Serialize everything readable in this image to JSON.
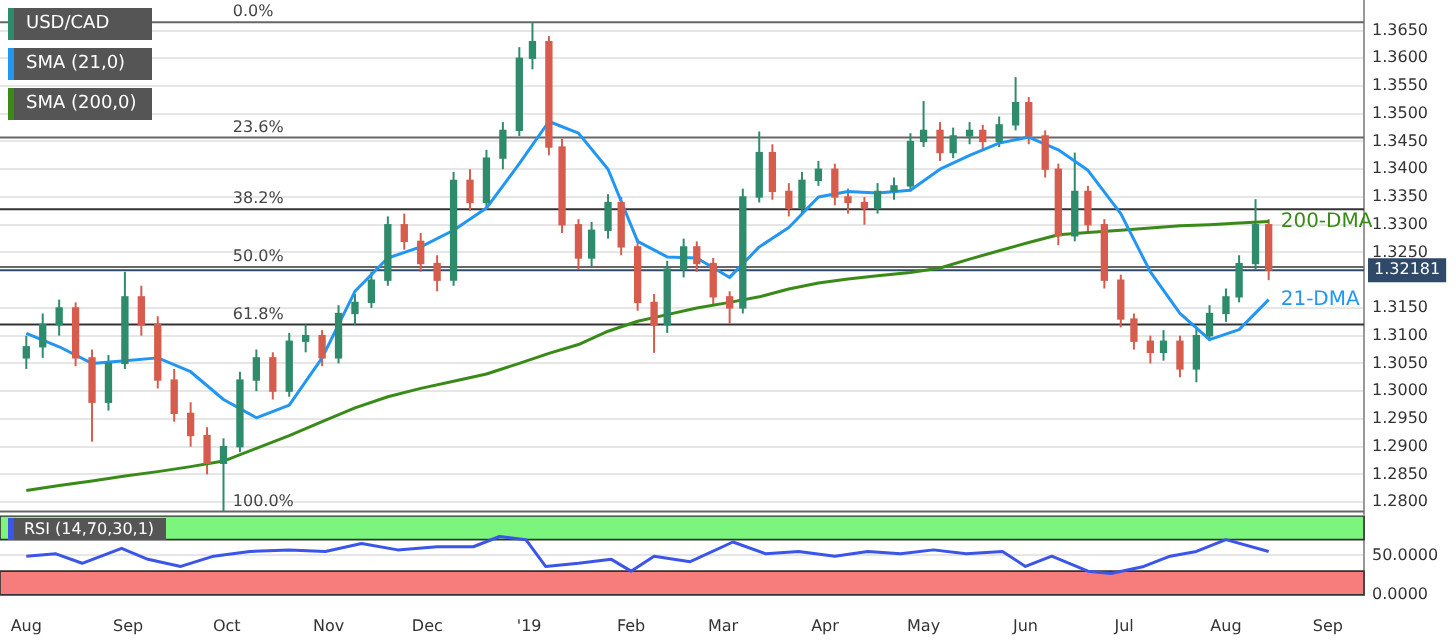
{
  "chart_data": [
    {
      "type": "candlestick",
      "legend": "top left",
      "grid": "y",
      "tick_labels": "y",
      "marker": "none",
      "xlim": [
        "2018-07-24",
        "2019-09-12"
      ],
      "ylim": [
        1.2775,
        1.3705
      ],
      "yticks": [
        {
          "value": 1.28,
          "label": "1.2800"
        },
        {
          "value": 1.285,
          "label": "1.2850"
        },
        {
          "value": 1.29,
          "label": "1.2900"
        },
        {
          "value": 1.295,
          "label": "1.2950"
        },
        {
          "value": 1.3,
          "label": "1.3000"
        },
        {
          "value": 1.305,
          "label": "1.3050"
        },
        {
          "value": 1.31,
          "label": "1.3100"
        },
        {
          "value": 1.315,
          "label": "1.3150"
        },
        {
          "value": 1.325,
          "label": "1.3250"
        },
        {
          "value": 1.33,
          "label": "1.3300"
        },
        {
          "value": 1.335,
          "label": "1.3350"
        },
        {
          "value": 1.34,
          "label": "1.3400"
        },
        {
          "value": 1.345,
          "label": "1.3450"
        },
        {
          "value": 1.35,
          "label": "1.3500"
        },
        {
          "value": 1.355,
          "label": "1.3550"
        },
        {
          "value": 1.36,
          "label": "1.3600"
        },
        {
          "value": 1.365,
          "label": "1.3650"
        }
      ],
      "series": [
        {
          "name": "USD/CAD",
          "color": "#2e8b6b",
          "x": [
            "2018-08-01",
            "2018-08-06",
            "2018-08-11",
            "2018-08-16",
            "2018-08-21",
            "2018-08-26",
            "2018-08-31",
            "2018-09-05",
            "2018-09-10",
            "2018-09-15",
            "2018-09-20",
            "2018-09-25",
            "2018-09-30",
            "2018-10-05",
            "2018-10-10",
            "2018-10-15",
            "2018-10-20",
            "2018-10-25",
            "2018-10-30",
            "2018-11-04",
            "2018-11-09",
            "2018-11-14",
            "2018-11-19",
            "2018-11-24",
            "2018-11-29",
            "2018-12-04",
            "2018-12-09",
            "2018-12-14",
            "2018-12-19",
            "2018-12-24",
            "2018-12-29",
            "2019-01-02",
            "2019-01-07",
            "2019-01-11",
            "2019-01-16",
            "2019-01-20",
            "2019-01-25",
            "2019-01-29",
            "2019-02-03",
            "2019-02-08",
            "2019-02-12",
            "2019-02-17",
            "2019-02-21",
            "2019-02-26",
            "2019-03-03",
            "2019-03-07",
            "2019-03-12",
            "2019-03-16",
            "2019-03-21",
            "2019-03-25",
            "2019-03-30",
            "2019-04-04",
            "2019-04-08",
            "2019-04-13",
            "2019-04-17",
            "2019-04-22",
            "2019-04-27",
            "2019-05-01",
            "2019-05-06",
            "2019-05-10",
            "2019-05-15",
            "2019-05-19",
            "2019-05-24",
            "2019-05-29",
            "2019-06-02",
            "2019-06-07",
            "2019-06-11",
            "2019-06-16",
            "2019-06-20",
            "2019-06-25",
            "2019-06-30",
            "2019-07-04",
            "2019-07-09",
            "2019-07-13",
            "2019-07-18",
            "2019-07-23",
            "2019-07-27",
            "2019-08-01",
            "2019-08-05",
            "2019-08-10",
            "2019-08-14"
          ],
          "ohlc": [
            [
              1.306,
              1.31,
              1.304,
              1.308
            ],
            [
              1.308,
              1.314,
              1.306,
              1.312
            ],
            [
              1.312,
              1.3165,
              1.31,
              1.315
            ],
            [
              1.315,
              1.316,
              1.3045,
              1.306
            ],
            [
              1.306,
              1.3075,
              1.2909,
              1.298
            ],
            [
              1.298,
              1.3065,
              1.2965,
              1.305
            ],
            [
              1.305,
              1.3215,
              1.304,
              1.317
            ],
            [
              1.317,
              1.319,
              1.31,
              1.312
            ],
            [
              1.312,
              1.3135,
              1.3005,
              1.302
            ],
            [
              1.302,
              1.304,
              1.2945,
              1.296
            ],
            [
              1.296,
              1.298,
              1.29,
              1.292
            ],
            [
              1.292,
              1.2935,
              1.285,
              1.287
            ],
            [
              1.287,
              1.2915,
              1.2783,
              1.29
            ],
            [
              1.29,
              1.3035,
              1.289,
              1.302
            ],
            [
              1.302,
              1.3075,
              1.3,
              1.306
            ],
            [
              1.306,
              1.307,
              1.2985,
              1.3
            ],
            [
              1.3,
              1.3105,
              1.299,
              1.309
            ],
            [
              1.309,
              1.312,
              1.307,
              1.31
            ],
            [
              1.31,
              1.311,
              1.3045,
              1.306
            ],
            [
              1.306,
              1.3155,
              1.305,
              1.314
            ],
            [
              1.314,
              1.3175,
              1.312,
              1.316
            ],
            [
              1.316,
              1.3215,
              1.315,
              1.32
            ],
            [
              1.32,
              1.3315,
              1.319,
              1.33
            ],
            [
              1.33,
              1.332,
              1.3255,
              1.327
            ],
            [
              1.327,
              1.3285,
              1.3215,
              1.323
            ],
            [
              1.323,
              1.3245,
              1.318,
              1.32
            ],
            [
              1.32,
              1.3395,
              1.319,
              1.338
            ],
            [
              1.338,
              1.34,
              1.3325,
              1.334
            ],
            [
              1.334,
              1.3435,
              1.333,
              1.342
            ],
            [
              1.342,
              1.3485,
              1.34,
              1.347
            ],
            [
              1.347,
              1.362,
              1.346,
              1.36
            ],
            [
              1.36,
              1.3665,
              1.358,
              1.363
            ],
            [
              1.363,
              1.364,
              1.3425,
              1.344
            ],
            [
              1.344,
              1.3455,
              1.3285,
              1.33
            ],
            [
              1.33,
              1.331,
              1.322,
              1.324
            ],
            [
              1.324,
              1.3305,
              1.3225,
              1.329
            ],
            [
              1.329,
              1.3355,
              1.3275,
              1.334
            ],
            [
              1.334,
              1.335,
              1.3245,
              1.326
            ],
            [
              1.326,
              1.3275,
              1.3145,
              1.316
            ],
            [
              1.316,
              1.3175,
              1.3069,
              1.312
            ],
            [
              1.312,
              1.3235,
              1.3105,
              1.322
            ],
            [
              1.322,
              1.3275,
              1.3205,
              1.326
            ],
            [
              1.326,
              1.327,
              1.3215,
              1.323
            ],
            [
              1.323,
              1.324,
              1.3155,
              1.317
            ],
            [
              1.317,
              1.318,
              1.3122,
              1.315
            ],
            [
              1.315,
              1.3365,
              1.314,
              1.335
            ],
            [
              1.335,
              1.3468,
              1.334,
              1.343
            ],
            [
              1.343,
              1.3445,
              1.3345,
              1.336
            ],
            [
              1.336,
              1.3375,
              1.3315,
              1.333
            ],
            [
              1.333,
              1.3395,
              1.332,
              1.338
            ],
            [
              1.338,
              1.3415,
              1.337,
              1.34
            ],
            [
              1.34,
              1.341,
              1.3335,
              1.335
            ],
            [
              1.335,
              1.3365,
              1.332,
              1.334
            ],
            [
              1.334,
              1.335,
              1.33,
              1.333
            ],
            [
              1.333,
              1.3375,
              1.332,
              1.336
            ],
            [
              1.336,
              1.3385,
              1.3345,
              1.337
            ],
            [
              1.337,
              1.3465,
              1.336,
              1.345
            ],
            [
              1.345,
              1.3523,
              1.344,
              1.347
            ],
            [
              1.347,
              1.3485,
              1.3415,
              1.343
            ],
            [
              1.343,
              1.3475,
              1.342,
              1.346
            ],
            [
              1.346,
              1.3485,
              1.3445,
              1.347
            ],
            [
              1.347,
              1.348,
              1.3435,
              1.345
            ],
            [
              1.345,
              1.3495,
              1.344,
              1.348
            ],
            [
              1.348,
              1.3566,
              1.347,
              1.352
            ],
            [
              1.352,
              1.353,
              1.3445,
              1.346
            ],
            [
              1.346,
              1.347,
              1.3385,
              1.34
            ],
            [
              1.34,
              1.341,
              1.3263,
              1.328
            ],
            [
              1.328,
              1.343,
              1.327,
              1.336
            ],
            [
              1.336,
              1.337,
              1.3285,
              1.33
            ],
            [
              1.33,
              1.331,
              1.3185,
              1.32
            ],
            [
              1.32,
              1.321,
              1.3115,
              1.313
            ],
            [
              1.313,
              1.314,
              1.3075,
              1.309
            ],
            [
              1.309,
              1.31,
              1.305,
              1.307
            ],
            [
              1.307,
              1.311,
              1.3055,
              1.309
            ],
            [
              1.309,
              1.31,
              1.3025,
              1.304
            ],
            [
              1.304,
              1.3115,
              1.3016,
              1.31
            ],
            [
              1.31,
              1.3155,
              1.309,
              1.314
            ],
            [
              1.314,
              1.3185,
              1.3125,
              1.317
            ],
            [
              1.317,
              1.3245,
              1.316,
              1.323
            ],
            [
              1.323,
              1.3346,
              1.322,
              1.33
            ],
            [
              1.33,
              1.331,
              1.32,
              1.32181
            ]
          ],
          "colors": [
            "#2e8b6b",
            "#2e8b6b",
            "#2e8b6b",
            "#d65c4e",
            "#d65c4e",
            "#2e8b6b",
            "#2e8b6b",
            "#d65c4e",
            "#d65c4e",
            "#d65c4e",
            "#d65c4e",
            "#d65c4e",
            "#2e8b6b",
            "#2e8b6b",
            "#2e8b6b",
            "#d65c4e",
            "#2e8b6b",
            "#2e8b6b",
            "#d65c4e",
            "#2e8b6b",
            "#2e8b6b",
            "#2e8b6b",
            "#2e8b6b",
            "#d65c4e",
            "#d65c4e",
            "#d65c4e",
            "#2e8b6b",
            "#d65c4e",
            "#2e8b6b",
            "#2e8b6b",
            "#2e8b6b",
            "#2e8b6b",
            "#d65c4e",
            "#d65c4e",
            "#d65c4e",
            "#2e8b6b",
            "#2e8b6b",
            "#d65c4e",
            "#d65c4e",
            "#d65c4e",
            "#2e8b6b",
            "#2e8b6b",
            "#d65c4e",
            "#d65c4e",
            "#d65c4e",
            "#2e8b6b",
            "#2e8b6b",
            "#d65c4e",
            "#d65c4e",
            "#2e8b6b",
            "#2e8b6b",
            "#d65c4e",
            "#d65c4e",
            "#d65c4e",
            "#2e8b6b",
            "#2e8b6b",
            "#2e8b6b",
            "#2e8b6b",
            "#d65c4e",
            "#2e8b6b",
            "#2e8b6b",
            "#d65c4e",
            "#2e8b6b",
            "#2e8b6b",
            "#d65c4e",
            "#d65c4e",
            "#d65c4e",
            "#2e8b6b",
            "#d65c4e",
            "#d65c4e",
            "#d65c4e",
            "#d65c4e",
            "#d65c4e",
            "#2e8b6b",
            "#d65c4e",
            "#2e8b6b",
            "#2e8b6b",
            "#2e8b6b",
            "#2e8b6b",
            "#2e8b6b",
            "#d65c4e"
          ]
        },
        {
          "name": "SMA (21,0)",
          "type": "line",
          "color": "#2196f3",
          "x": [
            "2018-08-01",
            "2018-08-11",
            "2018-08-21",
            "2018-08-31",
            "2018-09-10",
            "2018-09-20",
            "2018-09-30",
            "2018-10-10",
            "2018-10-20",
            "2018-10-30",
            "2018-11-09",
            "2018-11-19",
            "2018-11-29",
            "2018-12-09",
            "2018-12-19",
            "2018-12-29",
            "2019-01-07",
            "2019-01-16",
            "2019-01-25",
            "2019-02-03",
            "2019-02-12",
            "2019-02-21",
            "2019-03-03",
            "2019-03-12",
            "2019-03-21",
            "2019-03-30",
            "2019-04-08",
            "2019-04-17",
            "2019-04-27",
            "2019-05-06",
            "2019-05-15",
            "2019-05-24",
            "2019-06-02",
            "2019-06-11",
            "2019-06-20",
            "2019-06-30",
            "2019-07-09",
            "2019-07-18",
            "2019-07-27",
            "2019-08-05",
            "2019-08-14"
          ],
          "values": [
            1.3104,
            1.308,
            1.305,
            1.3055,
            1.306,
            1.3035,
            1.2985,
            1.2952,
            1.2975,
            1.306,
            1.318,
            1.324,
            1.326,
            1.329,
            1.333,
            1.341,
            1.3486,
            1.3465,
            1.34,
            1.327,
            1.3242,
            1.324,
            1.3205,
            1.326,
            1.3295,
            1.335,
            1.336,
            1.3357,
            1.3362,
            1.34,
            1.3425,
            1.3447,
            1.3458,
            1.3435,
            1.3398,
            1.332,
            1.3215,
            1.314,
            1.3093,
            1.3111,
            1.3165
          ]
        },
        {
          "name": "SMA (200,0)",
          "type": "line",
          "color": "#3a8a1a",
          "x": [
            "2018-08-01",
            "2018-08-11",
            "2018-08-21",
            "2018-08-31",
            "2018-09-10",
            "2018-09-20",
            "2018-09-30",
            "2018-10-10",
            "2018-10-20",
            "2018-10-30",
            "2018-11-09",
            "2018-11-19",
            "2018-11-29",
            "2018-12-09",
            "2018-12-19",
            "2018-12-29",
            "2019-01-07",
            "2019-01-16",
            "2019-01-25",
            "2019-02-03",
            "2019-02-12",
            "2019-02-21",
            "2019-03-03",
            "2019-03-12",
            "2019-03-21",
            "2019-03-30",
            "2019-04-08",
            "2019-04-17",
            "2019-04-27",
            "2019-05-06",
            "2019-05-15",
            "2019-05-24",
            "2019-06-02",
            "2019-06-11",
            "2019-06-20",
            "2019-06-30",
            "2019-07-09",
            "2019-07-18",
            "2019-07-27",
            "2019-08-05",
            "2019-08-14"
          ],
          "values": [
            1.2821,
            1.283,
            1.2838,
            1.2847,
            1.2855,
            1.2864,
            1.2874,
            1.2897,
            1.292,
            1.2945,
            1.297,
            1.299,
            1.3005,
            1.3018,
            1.3031,
            1.305,
            1.3068,
            1.3084,
            1.3108,
            1.3126,
            1.3138,
            1.315,
            1.316,
            1.317,
            1.3184,
            1.3195,
            1.3202,
            1.3208,
            1.3214,
            1.3222,
            1.3238,
            1.3253,
            1.3268,
            1.3282,
            1.3286,
            1.329,
            1.3294,
            1.3298,
            1.33,
            1.3303,
            1.3306
          ]
        }
      ],
      "ref_lines": [
        {
          "axis": "y",
          "value": 1.32181,
          "label": "1.32181",
          "color": "#2f4a68"
        },
        {
          "axis": "y",
          "value": 1.3665,
          "color": "#666666"
        },
        {
          "axis": "y",
          "value": 1.3457,
          "color": "#666666"
        },
        {
          "axis": "y",
          "value": 1.3328,
          "color": "#333333"
        },
        {
          "axis": "y",
          "value": 1.3224,
          "color": "#666666"
        },
        {
          "axis": "y",
          "value": 1.312,
          "color": "#333333"
        },
        {
          "axis": "y",
          "value": 1.2783,
          "color": "#666666"
        }
      ],
      "annotations": [
        {
          "text": "0.0%",
          "x": "2018-10-01",
          "y": 1.3665
        },
        {
          "text": "23.6%",
          "x": "2018-10-01",
          "y": 1.3457
        },
        {
          "text": "38.2%",
          "x": "2018-10-01",
          "y": 1.3328
        },
        {
          "text": "50.0%",
          "x": "2018-10-01",
          "y": 1.3224
        },
        {
          "text": "61.8%",
          "x": "2018-10-01",
          "y": 1.312
        },
        {
          "text": "100.0%",
          "x": "2018-10-01",
          "y": 1.2783
        },
        {
          "text": "200-DMA",
          "x": "2019-08-14",
          "y": 1.3306
        },
        {
          "text": "21-DMA",
          "x": "2019-08-14",
          "y": 1.3165
        }
      ]
    },
    {
      "type": "line",
      "legend": "top left",
      "grid": "y",
      "marker": "none",
      "xlim": [
        "2018-07-24",
        "2019-09-12"
      ],
      "ylim": [
        0,
        100
      ],
      "xticks": [
        {
          "value": "2018-08-01",
          "label": "Aug"
        },
        {
          "value": "2018-09-01",
          "label": "Sep"
        },
        {
          "value": "2018-10-01",
          "label": "Oct"
        },
        {
          "value": "2018-11-01",
          "label": "Nov"
        },
        {
          "value": "2018-12-01",
          "label": "Dec"
        },
        {
          "value": "2019-01-01",
          "label": "'19"
        },
        {
          "value": "2019-02-01",
          "label": "Feb"
        },
        {
          "value": "2019-03-01",
          "label": "Mar"
        },
        {
          "value": "2019-04-01",
          "label": "Apr"
        },
        {
          "value": "2019-05-01",
          "label": "May"
        },
        {
          "value": "2019-06-01",
          "label": "Jun"
        },
        {
          "value": "2019-07-01",
          "label": "Jul"
        },
        {
          "value": "2019-08-01",
          "label": "Aug"
        },
        {
          "value": "2019-09-01",
          "label": "Sep"
        }
      ],
      "yticks": [
        {
          "value": 0,
          "label": "0.0000"
        },
        {
          "value": 50,
          "label": "50.0000"
        }
      ],
      "bands": [
        {
          "axis": "y",
          "from": 70,
          "to": 100,
          "color": "#7cf57c"
        },
        {
          "axis": "y",
          "from": 0,
          "to": 30,
          "color": "#f77c7c"
        }
      ],
      "series": [
        {
          "name": "RSI (14,70,30,1)",
          "color": "#3a55e8",
          "x": [
            "2018-08-01",
            "2018-08-10",
            "2018-08-18",
            "2018-08-30",
            "2018-09-07",
            "2018-09-17",
            "2018-09-27",
            "2018-10-08",
            "2018-10-20",
            "2018-10-31",
            "2018-11-11",
            "2018-11-22",
            "2018-12-04",
            "2018-12-15",
            "2018-12-23",
            "2018-12-31",
            "2019-01-06",
            "2019-01-16",
            "2019-01-26",
            "2019-02-01",
            "2019-02-08",
            "2019-02-19",
            "2019-03-04",
            "2019-03-14",
            "2019-03-24",
            "2019-04-04",
            "2019-04-14",
            "2019-04-24",
            "2019-05-04",
            "2019-05-14",
            "2019-05-25",
            "2019-06-01",
            "2019-06-09",
            "2019-06-20",
            "2019-06-27",
            "2019-07-07",
            "2019-07-15",
            "2019-07-23",
            "2019-08-01",
            "2019-08-14"
          ],
          "values": [
            49,
            52,
            40,
            59,
            45,
            36,
            49,
            55,
            57,
            55,
            65,
            57,
            61,
            61,
            74,
            70,
            36,
            40,
            45,
            30,
            49,
            42,
            67,
            52,
            55,
            49,
            55,
            52,
            57,
            52,
            55,
            36,
            49,
            30,
            27,
            36,
            49,
            55,
            70,
            55
          ]
        }
      ]
    }
  ]
}
